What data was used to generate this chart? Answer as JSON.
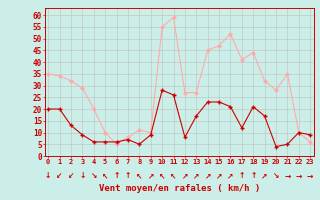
{
  "x": [
    0,
    1,
    2,
    3,
    4,
    5,
    6,
    7,
    8,
    9,
    10,
    11,
    12,
    13,
    14,
    15,
    16,
    17,
    18,
    19,
    20,
    21,
    22,
    23
  ],
  "mean_wind": [
    20,
    20,
    13,
    9,
    6,
    6,
    6,
    7,
    5,
    9,
    28,
    26,
    8,
    17,
    23,
    23,
    21,
    12,
    21,
    17,
    4,
    5,
    10,
    9
  ],
  "gust_wind": [
    35,
    34,
    32,
    29,
    20,
    10,
    5,
    8,
    11,
    10,
    55,
    59,
    27,
    27,
    45,
    47,
    52,
    41,
    44,
    32,
    28,
    35,
    10,
    6
  ],
  "bg_color": "#cceee8",
  "grid_color": "#bbbbbb",
  "mean_color": "#cc0000",
  "gust_color": "#ffaaaa",
  "axis_label_color": "#cc0000",
  "tick_color": "#cc0000",
  "xlabel": "Vent moyen/en rafales ( km/h )",
  "ylabel_ticks": [
    0,
    5,
    10,
    15,
    20,
    25,
    30,
    35,
    40,
    45,
    50,
    55,
    60
  ],
  "xlim": [
    -0.3,
    23.3
  ],
  "ylim": [
    0,
    63
  ],
  "arrows": [
    "↓",
    "↙",
    "↙",
    "↓",
    "↘",
    "↖",
    "↑",
    "↑",
    "↖",
    "↗",
    "↖",
    "↖",
    "↗",
    "↗",
    "↗",
    "↗",
    "↗",
    "↑",
    "↑",
    "↗",
    "↘",
    "→",
    "→",
    "→"
  ]
}
